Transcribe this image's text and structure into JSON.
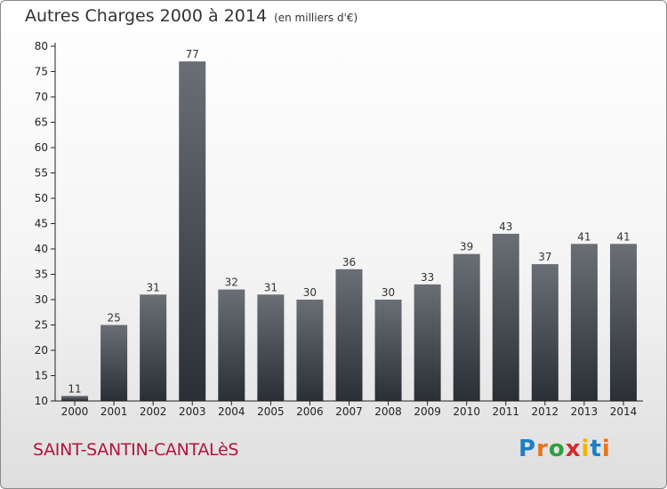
{
  "header": {
    "title": "Autres Charges 2000 à 2014",
    "unit": "(en milliers d'€)"
  },
  "footer": {
    "commune": "SAINT-SANTIN-CANTALèS",
    "logo_letters": [
      {
        "ch": "P",
        "color": "#1e7fc4"
      },
      {
        "ch": "r",
        "color": "#e8731c"
      },
      {
        "ch": "o",
        "color": "#2f9e3b"
      },
      {
        "ch": "x",
        "color": "#d42a2a"
      },
      {
        "ch": "i",
        "color": "#f0b400"
      },
      {
        "ch": "t",
        "color": "#1e7fc4"
      },
      {
        "ch": "i",
        "color": "#e8731c"
      }
    ]
  },
  "chart_data": {
    "type": "bar",
    "title": "Autres Charges 2000 à 2014",
    "subtitle": "(en milliers d'€)",
    "categories": [
      "2000",
      "2001",
      "2002",
      "2003",
      "2004",
      "2005",
      "2006",
      "2007",
      "2008",
      "2009",
      "2010",
      "2011",
      "2012",
      "2013",
      "2014"
    ],
    "values": [
      11,
      25,
      31,
      77,
      32,
      31,
      30,
      36,
      30,
      33,
      39,
      43,
      37,
      41,
      41
    ],
    "ylim": [
      10,
      80
    ],
    "yticks": [
      10,
      15,
      20,
      25,
      30,
      35,
      40,
      45,
      50,
      55,
      60,
      65,
      70,
      75,
      80
    ],
    "grid": false,
    "colors": {
      "bar_top": "#6a6f76",
      "bar_bottom": "#2a2f36",
      "axis": "#222222"
    }
  }
}
